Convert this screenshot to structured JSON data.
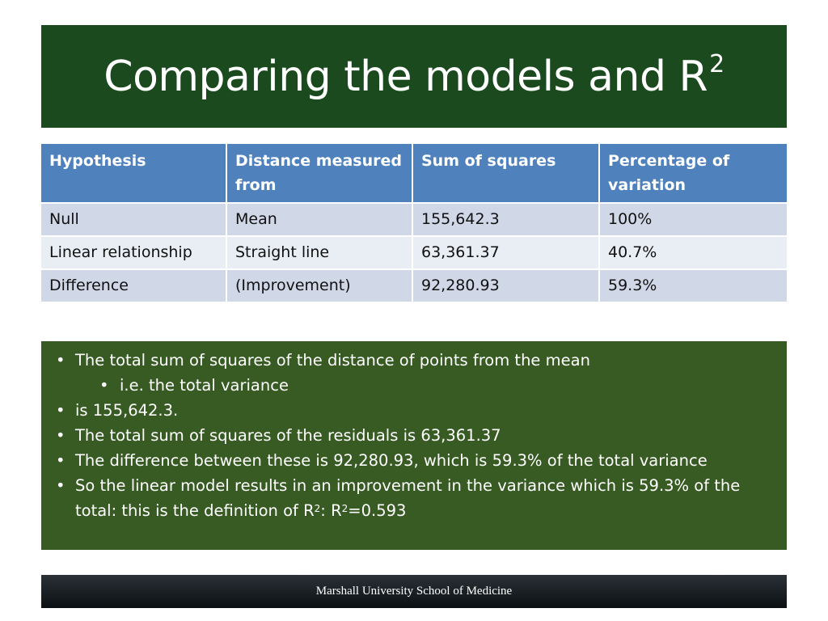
{
  "title": {
    "text": "Comparing the models and R",
    "superscript": "2"
  },
  "table": {
    "headers": [
      "Hypothesis",
      "Distance measured from",
      "Sum of squares",
      "Percentage of variation"
    ],
    "rows": [
      [
        "Null",
        "Mean",
        "155,642.3",
        "100%"
      ],
      [
        "Linear relationship",
        "Straight line",
        "63,361.37",
        "40.7%"
      ],
      [
        "Difference",
        "(Improvement)",
        "92,280.93",
        "59.3%"
      ]
    ]
  },
  "notes": {
    "bullet_char": "•",
    "items": [
      {
        "text": "The total sum of squares of the distance of points from the mean"
      },
      {
        "text": "i.e. the total variance"
      },
      {
        "text": "is 155,642.3."
      },
      {
        "text": "The total sum of squares of the residuals is 63,361.37"
      },
      {
        "text": "The difference between these is 92,280.93, which is 59.3% of the total variance"
      },
      {
        "text_a": "So the linear model results in an improvement in the variance which is 59.3% of the total: this is the definition of R",
        "sup_a": "2",
        "text_b": ": R",
        "sup_b": "2",
        "text_c": "=0.593"
      }
    ]
  },
  "footer": {
    "text": "Marshall University School of Medicine"
  },
  "colors": {
    "title_bg": "#1b4a1f",
    "header_bg": "#4f81bd",
    "row_dark": "#d0d8e8",
    "row_light": "#e9edf4",
    "notes_bg": "#375b23",
    "footer_bg": "#1a1f23"
  }
}
